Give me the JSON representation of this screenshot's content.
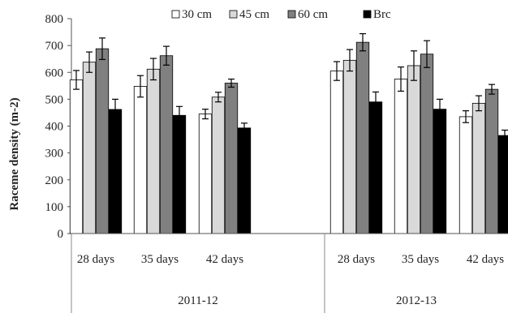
{
  "chart_data": {
    "type": "bar",
    "ylabel": "Raceme density (m-2)",
    "xlabel": "",
    "ylim": [
      0,
      800
    ],
    "yticks": [
      0,
      100,
      200,
      300,
      400,
      500,
      600,
      700,
      800
    ],
    "legend_position": "top",
    "error_bars": true,
    "groups": [
      "2011-12",
      "2012-13"
    ],
    "categories": [
      "28 days",
      "35 days",
      "42 days",
      "28 days",
      "35 days",
      "42 days"
    ],
    "series": [
      {
        "name": "30 cm",
        "color": "#ffffff",
        "values": [
          572,
          548,
          445,
          605,
          575,
          435
        ],
        "errors": [
          35,
          40,
          18,
          35,
          45,
          22
        ]
      },
      {
        "name": "45 cm",
        "color": "#d9d9d9",
        "values": [
          638,
          612,
          508,
          645,
          625,
          485
        ],
        "errors": [
          38,
          40,
          18,
          40,
          55,
          28
        ]
      },
      {
        "name": "60 cm",
        "color": "#808080",
        "values": [
          688,
          662,
          560,
          712,
          668,
          537
        ],
        "errors": [
          40,
          35,
          15,
          32,
          50,
          18
        ]
      },
      {
        "name": "Brc",
        "color": "#000000",
        "values": [
          462,
          440,
          393,
          490,
          463,
          365
        ],
        "errors": [
          38,
          33,
          18,
          37,
          37,
          20
        ]
      }
    ]
  }
}
